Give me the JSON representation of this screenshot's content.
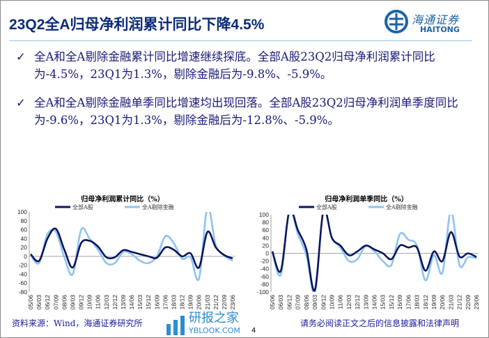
{
  "title": "23Q2全A归母净利润累计同比下降4.5%",
  "logo": {
    "cn": "海通证券",
    "en": "HAITONG"
  },
  "bullets": [
    {
      "icon": "check-icon",
      "mark": "✓",
      "text": "全A和全A剔除金融累计同比增速继续探底。全部A股23Q2归母净利润累计同比为-4.5%，23Q1为1.3%，剔除金融后为-9.8%、-5.9%。"
    },
    {
      "icon": "check-icon",
      "mark": "✓",
      "text": "全A和全A剔除金融单季同比增速均出现回落。全部A股23Q2归母净利润单季度同比为-9.6%，23Q1为1.3%，剔除金融后为-12.8%、-5.9%。"
    }
  ],
  "colors": {
    "dark": "#0a1560",
    "light": "#8fc3ef",
    "title": "#0a2a7a"
  },
  "chart_data": [
    {
      "type": "line",
      "title": "归母净利润累计同比（%）",
      "ylim": [
        -80,
        100
      ],
      "yticks": [
        100,
        80,
        60,
        40,
        20,
        0,
        -20,
        -40,
        -60,
        -80
      ],
      "categories": [
        "05/06",
        "06/03",
        "06/12",
        "07/09",
        "08/06",
        "09/03",
        "09/12",
        "10/09",
        "11/06",
        "12/03",
        "12/12",
        "13/09",
        "14/06",
        "15/03",
        "15/12",
        "16/09",
        "17/06",
        "18/03",
        "18/12",
        "19/09",
        "20/06",
        "21/03",
        "21/12",
        "22/09",
        "23/06"
      ],
      "series": [
        {
          "name": "全部A股",
          "values": [
            5,
            -10,
            40,
            62,
            15,
            -25,
            30,
            35,
            22,
            -2,
            -2,
            14,
            10,
            5,
            0,
            -3,
            20,
            15,
            0,
            7,
            -25,
            55,
            20,
            3,
            -4.5
          ]
        },
        {
          "name": "全A剔除金融",
          "values": [
            3,
            -15,
            50,
            55,
            -2,
            -40,
            60,
            40,
            15,
            -15,
            -15,
            10,
            5,
            -10,
            -15,
            0,
            45,
            30,
            -5,
            -2,
            -50,
            110,
            25,
            2,
            -9.8
          ]
        }
      ],
      "legend": "top"
    },
    {
      "type": "line",
      "title": "归母净利润单季同比（%）",
      "ylim": [
        -100,
        100
      ],
      "yticks": [
        100,
        80,
        60,
        40,
        20,
        0,
        -20,
        -40,
        -60,
        -80,
        -100
      ],
      "categories": [
        "05/06",
        "06/03",
        "06/12",
        "07/09",
        "08/06",
        "09/03",
        "09/12",
        "10/09",
        "11/06",
        "12/03",
        "12/12",
        "13/09",
        "14/06",
        "15/03",
        "15/12",
        "16/09",
        "17/06",
        "18/03",
        "18/12",
        "19/09",
        "20/06",
        "21/03",
        "21/12",
        "22/09",
        "23/06"
      ],
      "series": [
        {
          "name": "全部A股",
          "values": [
            5,
            -45,
            110,
            60,
            10,
            -95,
            110,
            40,
            20,
            -5,
            5,
            20,
            10,
            0,
            -15,
            20,
            15,
            15,
            -45,
            5,
            -20,
            55,
            -8,
            0,
            -9.6
          ]
        },
        {
          "name": "全A剔除金融",
          "values": [
            3,
            -55,
            110,
            50,
            -5,
            -100,
            110,
            40,
            15,
            -20,
            -15,
            20,
            5,
            -20,
            -30,
            50,
            35,
            20,
            -70,
            -5,
            -50,
            110,
            -30,
            -10,
            -12.8
          ]
        }
      ],
      "legend": "top"
    }
  ],
  "footer": {
    "source": "资料来源：Wind，海通证券研究所",
    "disclaimer": "请务必阅读正文之后的信息披露和法律声明",
    "page": "4",
    "watermark_cn": "研报之家",
    "watermark_en": "YBLOOK.COM"
  }
}
